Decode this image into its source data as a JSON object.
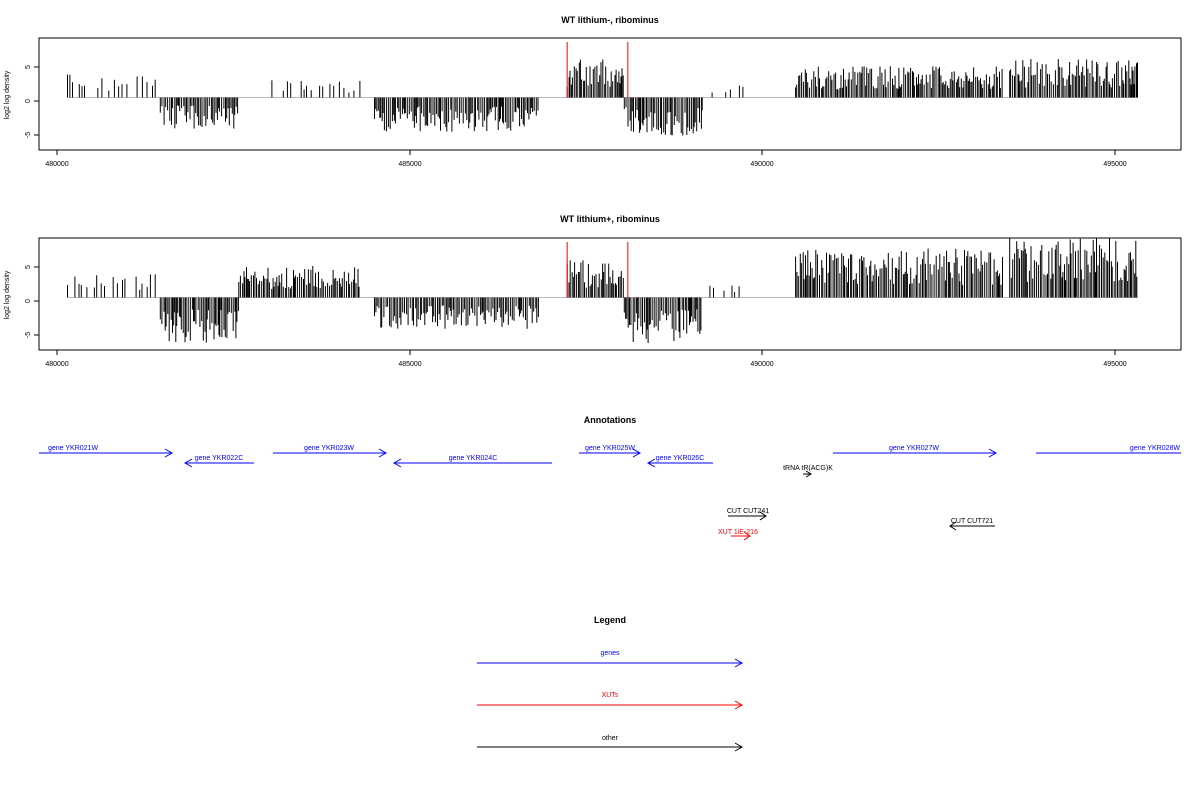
{
  "colors": {
    "gene": "#0000ff",
    "xut": "#ff0000",
    "other": "#000000",
    "marker": "#ff0000",
    "baseline": "#bbbbbb"
  },
  "panel1": {
    "title": "WT lithium-, ribominus",
    "ylabel": "log2 log density",
    "xlim": [
      480000,
      496000
    ],
    "ylim": [
      -7.5,
      8.5
    ],
    "yticks": [
      "-5",
      "0",
      "5"
    ],
    "xticks": [
      "480000",
      "485000",
      "490000",
      "495000"
    ]
  },
  "panel2": {
    "title": "WT lithium+, ribominus",
    "ylabel": "log2 log density",
    "xlim": [
      480000,
      496000
    ],
    "ylim": [
      -7.5,
      8.5
    ],
    "yticks": [
      "-5",
      "0",
      "5"
    ],
    "xticks": [
      "480000",
      "485000",
      "490000",
      "495000"
    ]
  },
  "annotations": {
    "title": "Annotations",
    "items": [
      {
        "label": "gene YKR021W",
        "type": "gene",
        "dir": "right",
        "row": 0
      },
      {
        "label": "gene YKR022C",
        "type": "gene",
        "dir": "left",
        "row": 1
      },
      {
        "label": "gene YKR023W",
        "type": "gene",
        "dir": "right",
        "row": 0
      },
      {
        "label": "gene YKR024C",
        "type": "gene",
        "dir": "left",
        "row": 1
      },
      {
        "label": "gene YKR025W",
        "type": "gene",
        "dir": "right",
        "row": 0
      },
      {
        "label": "gene YKR026C",
        "type": "gene",
        "dir": "left",
        "row": 1
      },
      {
        "label": "tRNA tR(ACG)K",
        "type": "other",
        "dir": "right",
        "row": 2
      },
      {
        "label": "gene YKR027W",
        "type": "gene",
        "dir": "right",
        "row": 0
      },
      {
        "label": "gene YKR028W",
        "type": "gene",
        "dir": "right",
        "row": 0
      },
      {
        "label": "CUT CUT241",
        "type": "other",
        "dir": "right",
        "row": 3
      },
      {
        "label": "XUT 1iE-216",
        "type": "xut",
        "dir": "right",
        "row": 4
      },
      {
        "label": "CUT CUT721",
        "type": "other",
        "dir": "left",
        "row": 3
      }
    ]
  },
  "legend": {
    "title": "Legend",
    "items": [
      {
        "label": "genes",
        "type": "gene"
      },
      {
        "label": "XUTs",
        "type": "xut"
      },
      {
        "label": "other",
        "type": "other"
      }
    ]
  },
  "chart_data": {
    "type": "bar",
    "x_range": [
      480400,
      495400
    ],
    "marker_lines_x": [
      487400,
      488250
    ],
    "series": [
      {
        "name": "WT lithium-, ribominus",
        "regions": [
          {
            "start": 480400,
            "end": 481700,
            "sign": 1,
            "max": 3.5
          },
          {
            "start": 481700,
            "end": 482800,
            "sign": -1,
            "max": 4.5
          },
          {
            "start": 483200,
            "end": 484500,
            "sign": 1,
            "max": 2.5
          },
          {
            "start": 484700,
            "end": 487000,
            "sign": -1,
            "max": 5.0
          },
          {
            "start": 487400,
            "end": 488200,
            "sign": 1,
            "max": 5.5
          },
          {
            "start": 488200,
            "end": 489300,
            "sign": -1,
            "max": 5.5
          },
          {
            "start": 489400,
            "end": 489900,
            "sign": 1,
            "max": 1.8
          },
          {
            "start": 490600,
            "end": 493500,
            "sign": 1,
            "max": 4.5
          },
          {
            "start": 493600,
            "end": 495400,
            "sign": 1,
            "max": 5.5
          }
        ]
      },
      {
        "name": "WT lithium+, ribominus",
        "regions": [
          {
            "start": 480400,
            "end": 481700,
            "sign": 1,
            "max": 3.5
          },
          {
            "start": 481700,
            "end": 482800,
            "sign": -1,
            "max": 6.5
          },
          {
            "start": 482800,
            "end": 484500,
            "sign": 1,
            "max": 4.5
          },
          {
            "start": 484700,
            "end": 487000,
            "sign": -1,
            "max": 4.5
          },
          {
            "start": 487400,
            "end": 488200,
            "sign": 1,
            "max": 5.5
          },
          {
            "start": 488200,
            "end": 489300,
            "sign": -1,
            "max": 6.5
          },
          {
            "start": 489400,
            "end": 490000,
            "sign": 1,
            "max": 2.0
          },
          {
            "start": 490600,
            "end": 493500,
            "sign": 1,
            "max": 7.0
          },
          {
            "start": 493600,
            "end": 495400,
            "sign": 1,
            "max": 8.5
          }
        ]
      }
    ]
  }
}
